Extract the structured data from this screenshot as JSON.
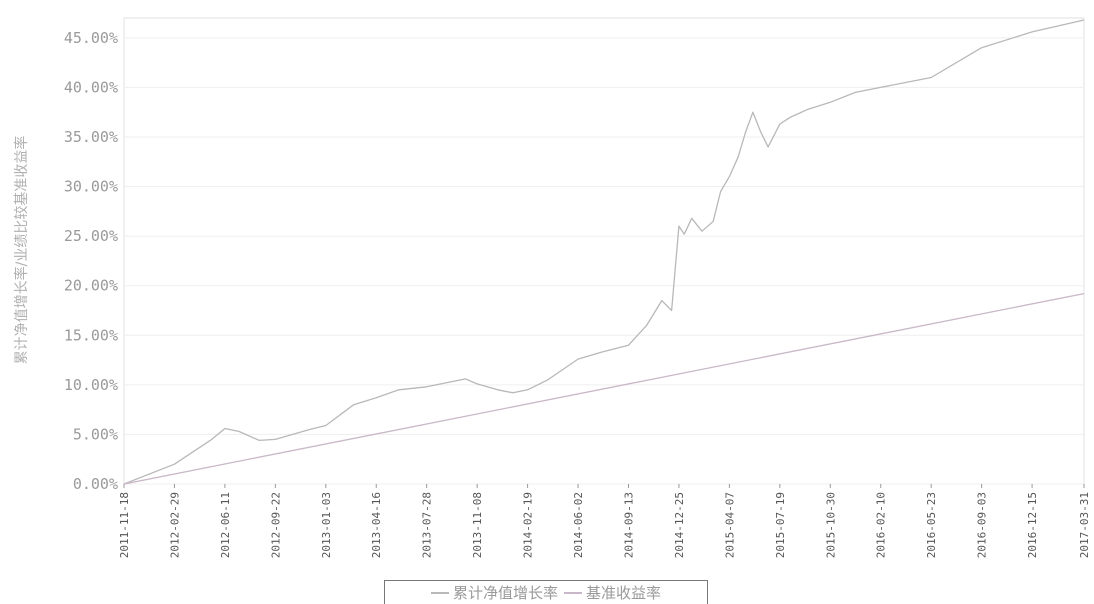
{
  "chart_data": {
    "type": "line",
    "title": "",
    "xlabel": "",
    "ylabel": "累计净值增长率/业绩比较基准收益率",
    "ylim": [
      0,
      47
    ],
    "y_ticks": [
      "0.00%",
      "5.00%",
      "10.00%",
      "15.00%",
      "20.00%",
      "25.00%",
      "30.00%",
      "35.00%",
      "40.00%",
      "45.00%"
    ],
    "x_ticks": [
      "2011-11-18",
      "2012-02-29",
      "2012-06-11",
      "2012-09-22",
      "2013-01-03",
      "2013-04-16",
      "2013-07-28",
      "2013-11-08",
      "2014-02-19",
      "2014-06-02",
      "2014-09-13",
      "2014-12-25",
      "2015-04-07",
      "2015-07-19",
      "2015-10-30",
      "2016-02-10",
      "2016-05-23",
      "2016-09-03",
      "2016-12-15",
      "2017-03-31"
    ],
    "grid": true,
    "legend_position": "bottom",
    "series": [
      {
        "name": "累计净值增长率",
        "color": "#b8b8b8",
        "x": [
          "2011-11-18",
          "2012-02-29",
          "2012-05-15",
          "2012-06-11",
          "2012-07-10",
          "2012-08-20",
          "2012-09-22",
          "2012-12-01",
          "2013-01-03",
          "2013-03-01",
          "2013-04-16",
          "2013-06-01",
          "2013-07-28",
          "2013-09-15",
          "2013-10-15",
          "2013-11-08",
          "2013-12-20",
          "2014-01-20",
          "2014-02-19",
          "2014-04-01",
          "2014-06-02",
          "2014-07-20",
          "2014-09-13",
          "2014-10-20",
          "2014-11-20",
          "2014-12-10",
          "2014-12-25",
          "2015-01-05",
          "2015-01-20",
          "2015-02-10",
          "2015-03-05",
          "2015-03-20",
          "2015-04-07",
          "2015-04-25",
          "2015-05-10",
          "2015-05-25",
          "2015-06-10",
          "2015-06-25",
          "2015-07-19",
          "2015-08-10",
          "2015-09-15",
          "2015-10-30",
          "2015-12-20",
          "2016-02-10",
          "2016-05-23",
          "2016-09-03",
          "2016-12-15",
          "2017-03-31"
        ],
        "values": [
          0.0,
          2.0,
          4.5,
          5.6,
          5.3,
          4.4,
          4.5,
          5.5,
          5.9,
          8.0,
          8.7,
          9.5,
          9.8,
          10.3,
          10.6,
          10.1,
          9.5,
          9.2,
          9.5,
          10.5,
          12.6,
          13.3,
          14.0,
          16.0,
          18.5,
          17.5,
          26.0,
          25.2,
          26.8,
          25.5,
          26.5,
          29.5,
          31.0,
          33.0,
          35.5,
          37.5,
          35.5,
          34.0,
          36.3,
          37.0,
          37.8,
          38.5,
          39.5,
          40.0,
          41.0,
          44.0,
          45.6,
          46.8
        ]
      },
      {
        "name": "基准收益率",
        "color": "#c9b8c9",
        "x": [
          "2011-11-18",
          "2017-03-31"
        ],
        "values": [
          0.0,
          19.2
        ]
      }
    ]
  }
}
